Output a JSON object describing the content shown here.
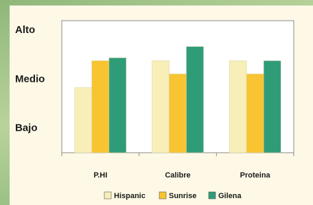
{
  "chart_data": {
    "type": "bar",
    "categories": [
      "P.HI",
      "Calibre",
      "Proteina"
    ],
    "series": [
      {
        "name": "Hispanic",
        "color": "#f8eeb8",
        "values": [
          1.83,
          2.38,
          2.38
        ]
      },
      {
        "name": "Sunrise",
        "color": "#f8c431",
        "values": [
          2.38,
          2.11,
          2.11
        ]
      },
      {
        "name": "Gilena",
        "color": "#2f9c78",
        "values": [
          2.44,
          2.67,
          2.38
        ]
      }
    ],
    "ylim": [
      0.5,
      3.2
    ],
    "yticks": [
      {
        "value": 1,
        "label": "Bajo"
      },
      {
        "value": 2,
        "label": "Medio"
      },
      {
        "value": 3,
        "label": "Alto"
      }
    ],
    "grid": false
  }
}
